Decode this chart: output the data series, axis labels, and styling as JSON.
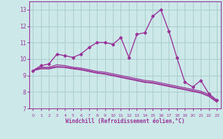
{
  "xlabel": "Windchill (Refroidissement éolien,°C)",
  "hours": [
    0,
    1,
    2,
    3,
    4,
    5,
    6,
    7,
    8,
    9,
    10,
    11,
    12,
    13,
    14,
    15,
    16,
    17,
    18,
    19,
    20,
    21,
    22,
    23
  ],
  "main_values": [
    9.3,
    9.6,
    9.7,
    10.3,
    10.2,
    10.1,
    10.3,
    10.7,
    11.0,
    11.0,
    10.9,
    11.3,
    10.1,
    11.5,
    11.6,
    12.6,
    13.0,
    11.7,
    10.1,
    8.6,
    8.3,
    8.7,
    7.9,
    7.5
  ],
  "line1_values": [
    9.3,
    9.5,
    9.5,
    9.65,
    9.6,
    9.5,
    9.45,
    9.35,
    9.25,
    9.2,
    9.1,
    9.0,
    8.9,
    8.8,
    8.7,
    8.65,
    8.55,
    8.45,
    8.35,
    8.25,
    8.15,
    8.05,
    7.85,
    7.5
  ],
  "line2_values": [
    9.3,
    9.45,
    9.45,
    9.55,
    9.52,
    9.44,
    9.38,
    9.28,
    9.18,
    9.12,
    9.02,
    8.92,
    8.82,
    8.72,
    8.62,
    8.57,
    8.47,
    8.37,
    8.27,
    8.17,
    8.07,
    7.97,
    7.77,
    7.43
  ],
  "line3_values": [
    9.3,
    9.4,
    9.4,
    9.5,
    9.48,
    9.4,
    9.34,
    9.24,
    9.14,
    9.08,
    8.98,
    8.88,
    8.78,
    8.68,
    8.58,
    8.53,
    8.43,
    8.33,
    8.23,
    8.13,
    8.03,
    7.93,
    7.73,
    7.38
  ],
  "line_color": "#993399",
  "bg_color": "#cce8e8",
  "grid_color": "#aacccc",
  "ylim": [
    7,
    13.5
  ],
  "yticks": [
    7,
    8,
    9,
    10,
    11,
    12,
    13
  ],
  "xlim": [
    -0.5,
    23.5
  ]
}
